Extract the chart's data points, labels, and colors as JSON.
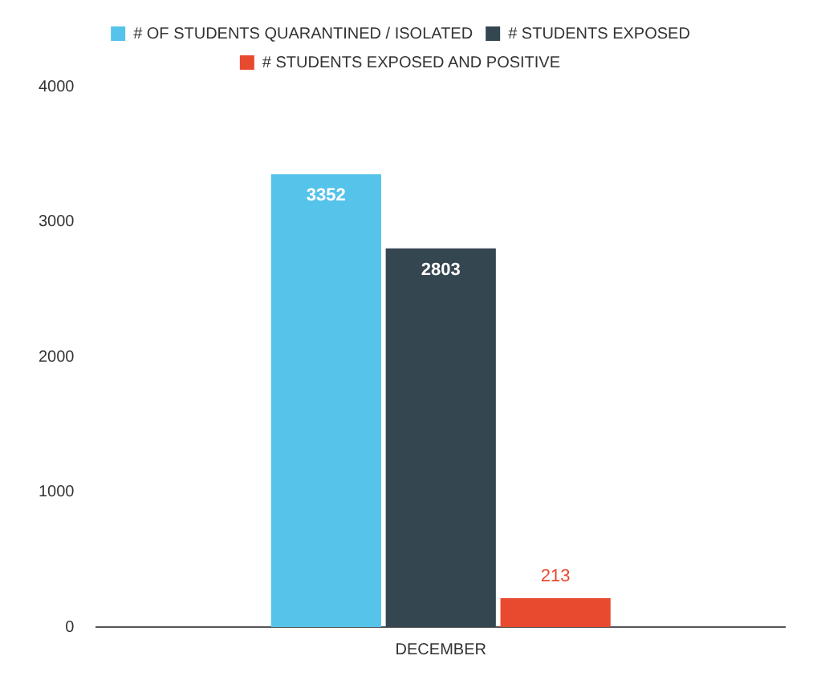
{
  "chart_data": {
    "type": "bar",
    "categories": [
      "DECEMBER"
    ],
    "series": [
      {
        "name": "# OF STUDENTS QUARANTINED / ISOLATED",
        "color": "#56c3ea",
        "values": [
          3352
        ]
      },
      {
        "name": "# STUDENTS EXPOSED",
        "color": "#34464f",
        "values": [
          2803
        ]
      },
      {
        "name": "# STUDENTS EXPOSED AND POSITIVE",
        "color": "#e84a2f",
        "values": [
          213
        ]
      }
    ],
    "ylim": [
      0,
      4000
    ],
    "yticks": [
      0,
      1000,
      2000,
      3000,
      4000
    ],
    "grid": false,
    "legend": "top",
    "data_labels": true
  }
}
